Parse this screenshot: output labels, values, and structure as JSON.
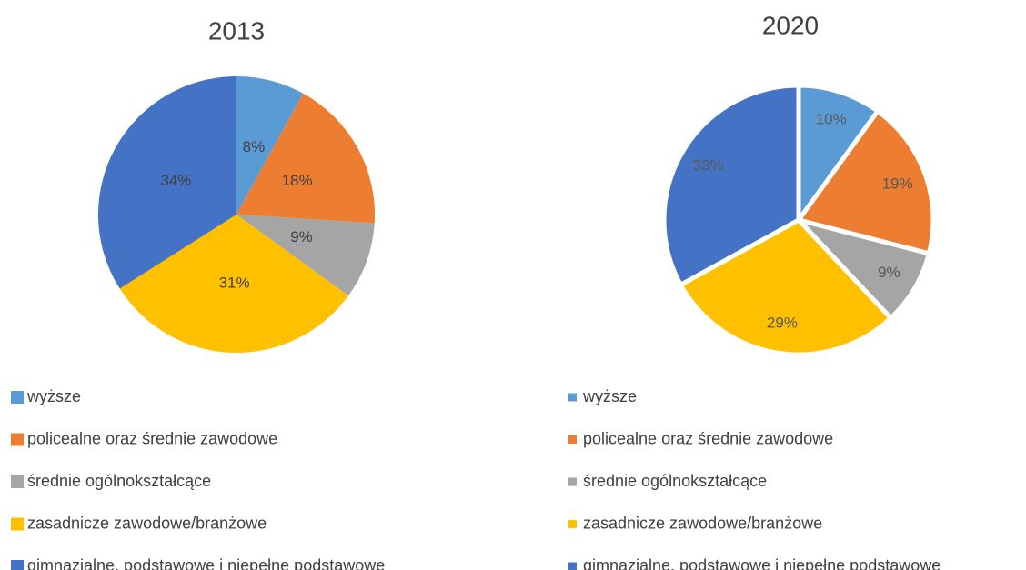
{
  "chart_data": [
    {
      "type": "pie",
      "title": "2013",
      "categories": [
        "wyższe",
        "policealne oraz średnie zawodowe",
        "średnie ogólnokształcące",
        "zasadnicze zawodowe/branżowe",
        "gimnazjalne, podstawowe i niepełne podstawowe"
      ],
      "values": [
        8,
        18,
        9,
        31,
        34
      ],
      "value_labels": [
        "8%",
        "18%",
        "9%",
        "31%",
        "34%"
      ],
      "colors": [
        "#5b9bd5",
        "#ed7d31",
        "#a5a5a5",
        "#ffc000",
        "#4472c4"
      ]
    },
    {
      "type": "pie",
      "title": "2020",
      "categories": [
        "wyższe",
        "policealne oraz średnie zawodowe",
        "średnie ogólnokształcące",
        "zasadnicze zawodowe/branżowe",
        "gimnazjalne, podstawowe i niepełne podstawowe"
      ],
      "values": [
        10,
        19,
        9,
        29,
        33
      ],
      "value_labels": [
        "10%",
        "19%",
        "9%",
        "29%",
        "33%"
      ],
      "colors": [
        "#5b9bd5",
        "#ed7d31",
        "#a5a5a5",
        "#ffc000",
        "#4472c4"
      ]
    }
  ]
}
